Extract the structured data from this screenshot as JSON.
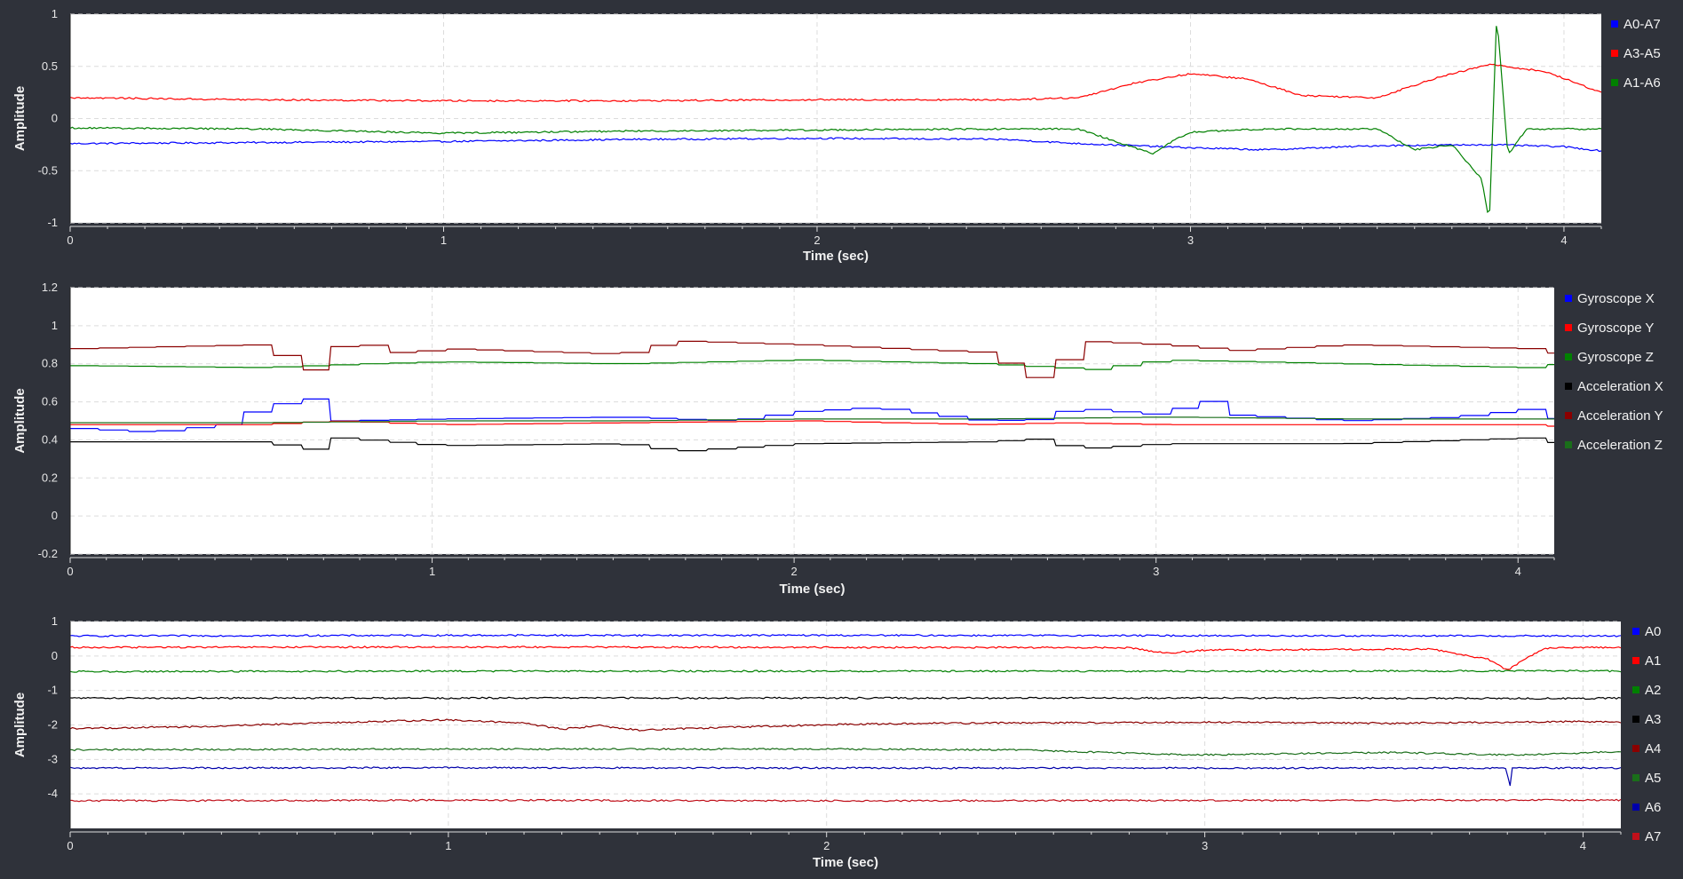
{
  "chart_data": [
    {
      "type": "line",
      "xlabel": "Time (sec)",
      "ylabel": "Amplitude",
      "xlim": [
        0,
        4.1
      ],
      "ylim": [
        -1,
        1
      ],
      "xticks": [
        "0",
        "1",
        "2",
        "3",
        "4"
      ],
      "yticks": [
        "-1",
        "-0.5",
        "0",
        "0.5",
        "1"
      ],
      "grid": true,
      "legend_position": "right",
      "series": [
        {
          "name": "A0-A7",
          "color": "#0000ff",
          "x": [
            0,
            0.5,
            1,
            1.5,
            2,
            2.5,
            2.7,
            3,
            3.2,
            3.5,
            3.8,
            4,
            4.1
          ],
          "y": [
            -0.24,
            -0.23,
            -0.22,
            -0.2,
            -0.19,
            -0.2,
            -0.24,
            -0.28,
            -0.3,
            -0.26,
            -0.25,
            -0.27,
            -0.31
          ]
        },
        {
          "name": "A3-A5",
          "color": "#ff0000",
          "x": [
            0,
            0.5,
            1,
            1.5,
            2,
            2.5,
            2.7,
            2.85,
            3,
            3.15,
            3.3,
            3.5,
            3.65,
            3.8,
            3.95,
            4.1
          ],
          "y": [
            0.2,
            0.18,
            0.17,
            0.17,
            0.18,
            0.18,
            0.2,
            0.34,
            0.43,
            0.38,
            0.22,
            0.2,
            0.38,
            0.52,
            0.45,
            0.25
          ]
        },
        {
          "name": "A1-A6",
          "color": "#008000",
          "x": [
            0,
            0.5,
            1,
            1.5,
            2,
            2.5,
            2.7,
            2.8,
            2.9,
            2.95,
            3,
            3.2,
            3.5,
            3.6,
            3.7,
            3.78,
            3.8,
            3.82,
            3.85,
            3.9,
            4,
            4.1
          ],
          "y": [
            -0.09,
            -0.1,
            -0.14,
            -0.12,
            -0.11,
            -0.1,
            -0.1,
            -0.22,
            -0.34,
            -0.22,
            -0.13,
            -0.1,
            -0.1,
            -0.3,
            -0.25,
            -0.58,
            -1,
            1,
            -0.35,
            -0.1,
            -0.1,
            -0.1
          ]
        }
      ]
    },
    {
      "type": "line",
      "xlabel": "Time (sec)",
      "ylabel": "Amplitude",
      "xlim": [
        0,
        4.1
      ],
      "ylim": [
        -0.2,
        1.2
      ],
      "xticks": [
        "0",
        "1",
        "2",
        "3",
        "4"
      ],
      "yticks": [
        "-0.2",
        "0",
        "0.2",
        "0.4",
        "0.6",
        "0.8",
        "1",
        "1.2"
      ],
      "grid": true,
      "legend_position": "right",
      "series": [
        {
          "name": "Gyroscope X",
          "color": "#0000ff",
          "x": [
            0,
            0.2,
            0.4,
            0.52,
            0.6,
            0.68,
            0.72,
            1,
            1.5,
            1.8,
            2,
            2.2,
            2.5,
            2.7,
            2.73,
            3,
            3.1,
            3.2,
            3.5,
            3.8,
            4,
            4.1
          ],
          "y": [
            0.46,
            0.44,
            0.48,
            0.58,
            0.6,
            0.63,
            0.5,
            0.51,
            0.52,
            0.5,
            0.55,
            0.57,
            0.5,
            0.51,
            0.57,
            0.53,
            0.62,
            0.53,
            0.5,
            0.52,
            0.56,
            0.5
          ]
        },
        {
          "name": "Gyroscope Y",
          "color": "#ff0000",
          "x": [
            0,
            0.5,
            0.7,
            1,
            1.5,
            2,
            2.5,
            2.7,
            3,
            3.5,
            4,
            4.1
          ],
          "y": [
            0.48,
            0.48,
            0.5,
            0.48,
            0.49,
            0.5,
            0.48,
            0.49,
            0.48,
            0.48,
            0.48,
            0.47
          ]
        },
        {
          "name": "Gyroscope Z",
          "color": "#008000",
          "x": [
            0,
            0.5,
            0.8,
            1,
            1.5,
            2,
            2.5,
            2.8,
            3,
            3.5,
            4,
            4.1
          ],
          "y": [
            0.79,
            0.78,
            0.8,
            0.81,
            0.8,
            0.82,
            0.8,
            0.77,
            0.82,
            0.8,
            0.78,
            0.8
          ]
        },
        {
          "name": "Acceleration X",
          "color": "#000000",
          "x": [
            0,
            0.5,
            0.68,
            0.72,
            1,
            1.5,
            1.65,
            2,
            2.5,
            2.7,
            2.73,
            3,
            3.5,
            4,
            4.1
          ],
          "y": [
            0.39,
            0.39,
            0.34,
            0.41,
            0.37,
            0.38,
            0.34,
            0.38,
            0.39,
            0.41,
            0.35,
            0.38,
            0.38,
            0.41,
            0.38
          ]
        },
        {
          "name": "Acceleration Y",
          "color": "#8b0000",
          "x": [
            0,
            0.5,
            0.68,
            0.73,
            0.9,
            1,
            1.5,
            1.65,
            2,
            2.5,
            2.68,
            2.75,
            3,
            3.2,
            3.5,
            4,
            4.1
          ],
          "y": [
            0.88,
            0.9,
            0.73,
            0.93,
            0.85,
            0.88,
            0.85,
            0.92,
            0.9,
            0.86,
            0.69,
            0.92,
            0.9,
            0.87,
            0.9,
            0.88,
            0.85
          ]
        },
        {
          "name": "Acceleration Z",
          "color": "#1a6e1a",
          "x": [
            0,
            0.5,
            1,
            1.5,
            2,
            2.5,
            3,
            3.5,
            4,
            4.1
          ],
          "y": [
            0.49,
            0.49,
            0.5,
            0.5,
            0.51,
            0.51,
            0.52,
            0.51,
            0.51,
            0.51
          ]
        }
      ]
    },
    {
      "type": "line",
      "xlabel": "Time (sec)",
      "ylabel": "Amplitude",
      "xlim": [
        0,
        4.1
      ],
      "ylim": [
        -5,
        1
      ],
      "xticks": [
        "0",
        "1",
        "2",
        "3",
        "4"
      ],
      "yticks": [
        "-4",
        "-3",
        "-2",
        "-1",
        "0",
        "1"
      ],
      "grid": true,
      "legend_position": "right",
      "series": [
        {
          "name": "A0",
          "color": "#0000ff",
          "x": [
            0,
            1,
            2,
            3,
            4,
            4.1
          ],
          "y": [
            0.58,
            0.6,
            0.6,
            0.59,
            0.58,
            0.58
          ]
        },
        {
          "name": "A1",
          "color": "#ff0000",
          "x": [
            0,
            1,
            2,
            2.8,
            2.9,
            3,
            3.6,
            3.75,
            3.8,
            3.85,
            3.9,
            4,
            4.1
          ],
          "y": [
            0.25,
            0.26,
            0.25,
            0.24,
            0.08,
            0.17,
            0.2,
            -0.1,
            -0.42,
            -0.05,
            0.22,
            0.25,
            0.25
          ]
        },
        {
          "name": "A2",
          "color": "#008000",
          "x": [
            0,
            1,
            2,
            3,
            4,
            4.1
          ],
          "y": [
            -0.45,
            -0.44,
            -0.44,
            -0.44,
            -0.43,
            -0.44
          ]
        },
        {
          "name": "A3",
          "color": "#000000",
          "x": [
            0,
            1,
            2,
            3,
            4,
            4.1
          ],
          "y": [
            -1.22,
            -1.22,
            -1.22,
            -1.22,
            -1.23,
            -1.22
          ]
        },
        {
          "name": "A4",
          "color": "#8b0000",
          "x": [
            0,
            0.3,
            0.8,
            1,
            1.2,
            1.3,
            1.4,
            1.5,
            1.8,
            2.05,
            2.3,
            3,
            3.5,
            4,
            4.1
          ],
          "y": [
            -2.1,
            -2.06,
            -1.9,
            -1.85,
            -1.95,
            -2.12,
            -2.02,
            -2.15,
            -2.05,
            -1.98,
            -1.95,
            -1.92,
            -1.95,
            -1.9,
            -1.92
          ]
        },
        {
          "name": "A5",
          "color": "#1a6e1a",
          "x": [
            0,
            1,
            2,
            2.5,
            2.8,
            3,
            3.3,
            3.5,
            3.8,
            4,
            4.1
          ],
          "y": [
            -2.72,
            -2.7,
            -2.7,
            -2.72,
            -2.82,
            -2.87,
            -2.82,
            -2.8,
            -2.87,
            -2.82,
            -2.76
          ]
        },
        {
          "name": "A6",
          "color": "#0000aa",
          "x": [
            0,
            1,
            2,
            3,
            3.8,
            3.805,
            3.81,
            3.815,
            4,
            4.1
          ],
          "y": [
            -3.25,
            -3.24,
            -3.25,
            -3.25,
            -3.25,
            -4.18,
            -3.25,
            -3.25,
            -3.25,
            -3.25
          ]
        },
        {
          "name": "A7",
          "color": "#c0101a",
          "x": [
            0,
            1,
            2,
            3,
            4,
            4.1
          ],
          "y": [
            -4.2,
            -4.18,
            -4.2,
            -4.19,
            -4.18,
            -4.18
          ]
        }
      ]
    }
  ]
}
